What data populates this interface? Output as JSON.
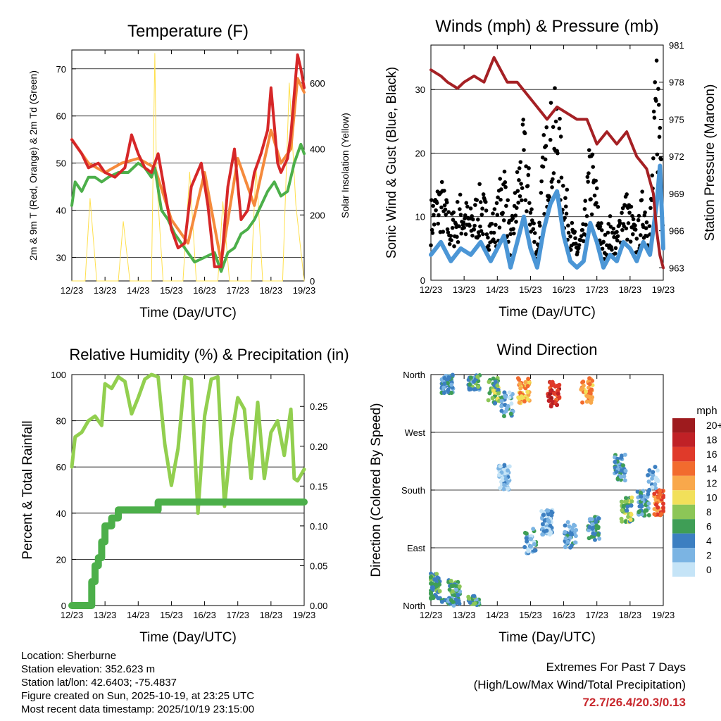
{
  "x_ticks": [
    "12/23",
    "13/23",
    "14/23",
    "15/23",
    "16/23",
    "17/23",
    "18/23",
    "19/23"
  ],
  "x_label": "Time (Day/UTC)",
  "colors": {
    "red": "#d62728",
    "orange": "#f58a3c",
    "green": "#4caf4a",
    "yellow": "#ffe04d",
    "black": "#000000",
    "blue": "#4b96d6",
    "maroon": "#a52024",
    "lightgreen": "#92cf4f",
    "precip": "#4caf4a",
    "extremes": "#c8282d"
  },
  "chart_data": [
    {
      "id": "temperature",
      "type": "line",
      "title": "Temperature (F)",
      "ylabel": "2m & 9m T (Red, Orange) & 2m Td (Green)",
      "y2label": "Solar Insolation (Yellow)",
      "x_range": [
        12,
        19
      ],
      "ylim": [
        25,
        74
      ],
      "y_ticks": [
        30,
        40,
        50,
        60,
        70
      ],
      "y2lim": [
        0,
        700
      ],
      "y2_ticks": [
        0,
        200,
        400,
        600
      ],
      "series": [
        {
          "name": "2m T",
          "color": "red",
          "x": [
            12,
            12.3,
            12.5,
            12.8,
            13,
            13.3,
            13.6,
            13.8,
            14,
            14.2,
            14.4,
            14.6,
            14.8,
            15.0,
            15.2,
            15.4,
            15.6,
            15.9,
            16.1,
            16.3,
            16.5,
            16.7,
            16.9,
            17.1,
            17.3,
            17.5,
            17.7,
            17.9,
            18.0,
            18.2,
            18.3,
            18.5,
            18.6,
            18.8,
            18.9,
            19.0
          ],
          "y": [
            55,
            52,
            49,
            50,
            48,
            47,
            49,
            56,
            52,
            49,
            48,
            52,
            44,
            36,
            32,
            33,
            45,
            50,
            41,
            28,
            28,
            45,
            53,
            38,
            40,
            48,
            52,
            57,
            66,
            50,
            48,
            51,
            56,
            73,
            70,
            66
          ]
        },
        {
          "name": "9m T",
          "color": "orange",
          "x": [
            12,
            12.5,
            13,
            13.5,
            14,
            14.5,
            15,
            15.5,
            16,
            16.5,
            17,
            17.5,
            18,
            18.3,
            18.6,
            18.8,
            19.0
          ],
          "y": [
            55,
            50,
            48,
            50,
            51,
            49,
            38,
            33,
            48,
            29,
            51,
            41,
            57,
            50,
            53,
            68,
            65
          ]
        },
        {
          "name": "2m Td",
          "color": "green",
          "x": [
            12,
            12.1,
            12.3,
            12.5,
            12.7,
            12.9,
            13.1,
            13.4,
            13.7,
            14,
            14.2,
            14.4,
            14.5,
            14.7,
            14.9,
            15.1,
            15.4,
            15.7,
            16,
            16.3,
            16.5,
            16.7,
            16.9,
            17.1,
            17.3,
            17.5,
            17.7,
            17.9,
            18.1,
            18.3,
            18.5,
            18.7,
            18.9,
            19.0
          ],
          "y": [
            41,
            46,
            44,
            47,
            47,
            46,
            47,
            48,
            48,
            50,
            49,
            47,
            49,
            40,
            38,
            35,
            32,
            29,
            30,
            31,
            27,
            31,
            32,
            35,
            36,
            38,
            41,
            44,
            46,
            43,
            44,
            50,
            54,
            52
          ]
        },
        {
          "name": "Solar",
          "color": "yellow",
          "axis": "y2",
          "x": [
            12,
            12.4,
            12.55,
            12.75,
            13,
            13.4,
            13.55,
            13.75,
            14,
            14.4,
            14.5,
            14.55,
            14.75,
            15,
            15.35,
            15.55,
            15.75,
            16,
            16.4,
            16.55,
            16.75,
            17,
            17.4,
            17.55,
            17.75,
            18,
            18.35,
            18.55,
            18.75,
            19.0
          ],
          "y": [
            0,
            0,
            250,
            0,
            0,
            0,
            180,
            0,
            0,
            0,
            690,
            320,
            0,
            0,
            0,
            330,
            0,
            0,
            0,
            240,
            0,
            0,
            0,
            350,
            0,
            0,
            0,
            600,
            230,
            0
          ]
        }
      ]
    },
    {
      "id": "winds",
      "type": "line",
      "title": "Winds (mph) & Pressure (mb)",
      "ylabel": "Sonic Wind & Gust (Blue, Black)",
      "y2label": "Station Pressure (Maroon)",
      "x_range": [
        12,
        19
      ],
      "ylim": [
        0,
        37
      ],
      "y_ticks": [
        0,
        10,
        20,
        30
      ],
      "y2lim": [
        962,
        981
      ],
      "y2_ticks": [
        963,
        966,
        969,
        972,
        975,
        978,
        981
      ],
      "series": [
        {
          "name": "Gust",
          "color": "black",
          "x": [
            12,
            12.3,
            12.6,
            12.9,
            13.2,
            13.5,
            13.8,
            14,
            14.2,
            14.4,
            14.6,
            14.8,
            15,
            15.2,
            15.4,
            15.6,
            15.8,
            16,
            16.2,
            16.4,
            16.6,
            16.8,
            17,
            17.2,
            17.4,
            17.6,
            17.8,
            18.0,
            18.2,
            18.4,
            18.6,
            18.8,
            18.9,
            19.0
          ],
          "y": [
            10,
            13,
            8,
            11,
            9,
            12,
            8,
            10,
            16,
            6,
            14,
            20,
            12,
            4,
            18,
            22,
            24,
            14,
            8,
            5,
            7,
            18,
            12,
            5,
            8,
            6,
            12,
            10,
            6,
            12,
            8,
            30,
            25,
            12
          ]
        },
        {
          "name": "Wind",
          "color": "blue",
          "x": [
            12,
            12.3,
            12.6,
            12.9,
            13.2,
            13.5,
            13.8,
            14,
            14.2,
            14.4,
            14.6,
            14.8,
            15,
            15.2,
            15.4,
            15.6,
            15.8,
            16,
            16.2,
            16.4,
            16.6,
            16.8,
            17,
            17.2,
            17.4,
            17.6,
            17.8,
            18.0,
            18.2,
            18.4,
            18.6,
            18.8,
            18.9,
            19.0
          ],
          "y": [
            4,
            6,
            3,
            5,
            4,
            6,
            3,
            5,
            7,
            2,
            6,
            10,
            5,
            2,
            8,
            12,
            14,
            7,
            3,
            2,
            3,
            9,
            6,
            2,
            4,
            3,
            6,
            5,
            3,
            6,
            4,
            12,
            18,
            5
          ]
        },
        {
          "name": "Pressure",
          "color": "maroon",
          "axis": "y2",
          "x": [
            12,
            12.3,
            12.5,
            12.8,
            13,
            13.3,
            13.6,
            13.9,
            14.1,
            14.3,
            14.6,
            14.9,
            15.2,
            15.5,
            15.8,
            16.1,
            16.4,
            16.7,
            17.0,
            17.3,
            17.6,
            17.9,
            18.2,
            18.5,
            18.7,
            18.8,
            18.9,
            19.0
          ],
          "y": [
            979,
            978.5,
            978,
            977.5,
            978,
            978.5,
            978,
            980,
            979,
            978,
            978,
            977,
            976,
            975,
            976,
            975.5,
            975,
            975,
            973,
            974,
            973,
            974,
            972,
            971,
            969,
            966,
            964,
            963
          ]
        }
      ]
    },
    {
      "id": "humidity",
      "type": "line",
      "title": "Relative Humidity (%) & Precipitation (in)",
      "ylabel": "Percent & Total Rainfall",
      "x_range": [
        12,
        19
      ],
      "ylim": [
        0,
        100
      ],
      "y_ticks": [
        0,
        20,
        40,
        60,
        80,
        100
      ],
      "y2lim": [
        0,
        0.29
      ],
      "y2_ticks": [
        "0.00",
        "0.05",
        "0.10",
        "0.15",
        "0.20",
        "0.25"
      ],
      "series": [
        {
          "name": "RH",
          "color": "lightgreen",
          "x": [
            12,
            12.1,
            12.3,
            12.5,
            12.7,
            12.9,
            13.0,
            13.2,
            13.4,
            13.6,
            13.8,
            14.0,
            14.2,
            14.4,
            14.6,
            14.8,
            15.0,
            15.2,
            15.4,
            15.6,
            15.8,
            16.0,
            16.2,
            16.4,
            16.6,
            16.8,
            17.0,
            17.2,
            17.4,
            17.6,
            17.8,
            18.0,
            18.2,
            18.4,
            18.6,
            18.7,
            18.8,
            19.0
          ],
          "y": [
            60,
            73,
            75,
            80,
            82,
            78,
            96,
            94,
            99,
            97,
            83,
            90,
            98,
            100,
            99,
            70,
            52,
            68,
            99,
            98,
            40,
            82,
            98,
            99,
            43,
            72,
            90,
            85,
            55,
            88,
            55,
            75,
            80,
            65,
            85,
            55,
            54,
            59
          ]
        },
        {
          "name": "Precip",
          "color": "precip",
          "axis": "y2",
          "step": true,
          "x": [
            12,
            12.5,
            12.6,
            12.7,
            12.8,
            12.9,
            13.0,
            13.2,
            13.4,
            14.6,
            19.0
          ],
          "y": [
            0,
            0,
            0.03,
            0.05,
            0.06,
            0.08,
            0.1,
            0.11,
            0.12,
            0.13,
            0.13
          ]
        }
      ]
    },
    {
      "id": "direction",
      "type": "scatter",
      "title": "Wind Direction",
      "ylabel": "Direction (Colored By Speed)",
      "x_range": [
        12,
        19
      ],
      "y_ticks": [
        "North",
        "East",
        "South",
        "West",
        "North"
      ],
      "colorbar_title": "mph",
      "colorbar_labels": [
        "20+",
        "18",
        "16",
        "14",
        "12",
        "10",
        "8",
        "6",
        "4",
        "2",
        "0"
      ],
      "colorbar_colors": [
        "#9e1b1e",
        "#c02126",
        "#e03a2a",
        "#f26b2e",
        "#f9a84b",
        "#f2e05a",
        "#8cc657",
        "#3f9e56",
        "#3c7fc1",
        "#7bb4e3",
        "#c5e4f7"
      ],
      "clusters": [
        {
          "x": 12.1,
          "dir": 30,
          "spd": 6,
          "n": 60
        },
        {
          "x": 12.7,
          "dir": 20,
          "spd": 5,
          "n": 50
        },
        {
          "x": 12.5,
          "dir": 350,
          "spd": 4,
          "n": 70
        },
        {
          "x": 13.3,
          "dir": 355,
          "spd": 5,
          "n": 60
        },
        {
          "x": 13.9,
          "dir": 335,
          "spd": 7,
          "n": 40
        },
        {
          "x": 14.3,
          "dir": 315,
          "spd": 3,
          "n": 30
        },
        {
          "x": 14.8,
          "dir": 335,
          "spd": 12,
          "n": 45
        },
        {
          "x": 15.7,
          "dir": 330,
          "spd": 17,
          "n": 40
        },
        {
          "x": 16.7,
          "dir": 335,
          "spd": 12,
          "n": 40
        },
        {
          "x": 14.2,
          "dir": 200,
          "spd": 1,
          "n": 50
        },
        {
          "x": 15.5,
          "dir": 130,
          "spd": 2,
          "n": 70
        },
        {
          "x": 15.0,
          "dir": 100,
          "spd": 3,
          "n": 30
        },
        {
          "x": 16.2,
          "dir": 110,
          "spd": 3,
          "n": 40
        },
        {
          "x": 16.9,
          "dir": 120,
          "spd": 4,
          "n": 40
        },
        {
          "x": 17.7,
          "dir": 215,
          "spd": 4,
          "n": 50
        },
        {
          "x": 17.9,
          "dir": 150,
          "spd": 7,
          "n": 45
        },
        {
          "x": 18.4,
          "dir": 160,
          "spd": 4,
          "n": 40
        },
        {
          "x": 18.9,
          "dir": 160,
          "spd": 14,
          "n": 40
        },
        {
          "x": 18.7,
          "dir": 200,
          "spd": 2,
          "n": 20
        }
      ]
    }
  ],
  "footer": {
    "location": "Location: Sherburne",
    "elevation": "Station elevation: 352.623 m",
    "latlon": "Station lat/lon: 42.6403; -75.4837",
    "created": "Figure created on Sun, 2025-10-19, at 23:25 UTC",
    "recent": "Most recent data timestamp: 2025/10/19 23:15:00"
  },
  "extremes": {
    "title": "Extremes For Past 7 Days",
    "subtitle": "(High/Low/Max Wind/Total Precipitation)",
    "values": "72.7/26.4/20.3/0.13"
  }
}
